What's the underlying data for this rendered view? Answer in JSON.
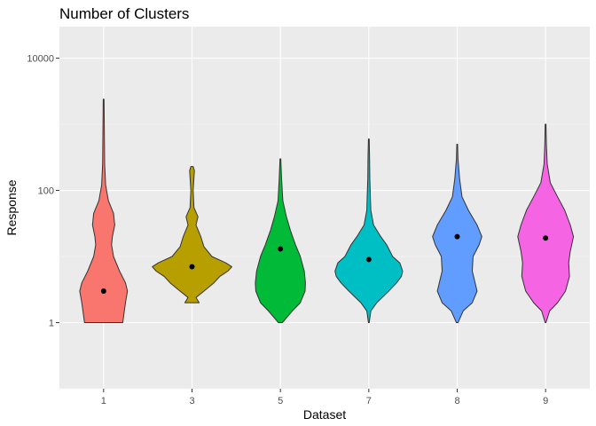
{
  "chart_data": {
    "type": "violin",
    "title": "Number of Clusters",
    "xlabel": "Dataset",
    "ylabel": "Response",
    "y_scale": "log10",
    "ylim": [
      0.1,
      30000
    ],
    "y_ticks": [
      1,
      100,
      10000
    ],
    "y_tick_labels": [
      "1",
      "100",
      "10000"
    ],
    "categories": [
      "1",
      "3",
      "5",
      "7",
      "8",
      "9"
    ],
    "grid": true,
    "legend": "none",
    "series": [
      {
        "category": "1",
        "color": "#F8766D",
        "mean": 3,
        "min": 1,
        "max": 2400,
        "profile": [
          [
            1,
            0.48
          ],
          [
            1.5,
            0.52
          ],
          [
            2,
            0.55
          ],
          [
            3,
            0.6
          ],
          [
            4,
            0.55
          ],
          [
            6,
            0.4
          ],
          [
            10,
            0.25
          ],
          [
            15,
            0.2
          ],
          [
            20,
            0.22
          ],
          [
            30,
            0.28
          ],
          [
            45,
            0.25
          ],
          [
            70,
            0.12
          ],
          [
            120,
            0.05
          ],
          [
            250,
            0.025
          ],
          [
            2400,
            0.01
          ]
        ]
      },
      {
        "category": "3",
        "color": "#B79F00",
        "mean": 7,
        "min": 2,
        "max": 230,
        "profile": [
          [
            2,
            0.18
          ],
          [
            2.4,
            0.1
          ],
          [
            3,
            0.3
          ],
          [
            4,
            0.55
          ],
          [
            5,
            0.7
          ],
          [
            6,
            0.9
          ],
          [
            7,
            1.0
          ],
          [
            8,
            0.85
          ],
          [
            10,
            0.5
          ],
          [
            14,
            0.3
          ],
          [
            20,
            0.22
          ],
          [
            30,
            0.1
          ],
          [
            40,
            0.15
          ],
          [
            55,
            0.05
          ],
          [
            100,
            0.03
          ],
          [
            200,
            0.06
          ],
          [
            230,
            0.03
          ]
        ]
      },
      {
        "category": "5",
        "color": "#00BA38",
        "mean": 13,
        "min": 1,
        "max": 300,
        "profile": [
          [
            1,
            0.05
          ],
          [
            1.5,
            0.3
          ],
          [
            2,
            0.5
          ],
          [
            3,
            0.62
          ],
          [
            4,
            0.63
          ],
          [
            6,
            0.6
          ],
          [
            10,
            0.5
          ],
          [
            15,
            0.38
          ],
          [
            25,
            0.25
          ],
          [
            40,
            0.15
          ],
          [
            70,
            0.06
          ],
          [
            150,
            0.03
          ],
          [
            300,
            0.01
          ]
        ]
      },
      {
        "category": "7",
        "color": "#00BFC4",
        "mean": 9,
        "min": 1,
        "max": 600,
        "profile": [
          [
            1,
            0.01
          ],
          [
            1.5,
            0.05
          ],
          [
            2,
            0.2
          ],
          [
            3,
            0.5
          ],
          [
            4,
            0.7
          ],
          [
            5,
            0.82
          ],
          [
            6,
            0.85
          ],
          [
            8,
            0.78
          ],
          [
            10,
            0.6
          ],
          [
            15,
            0.45
          ],
          [
            20,
            0.3
          ],
          [
            30,
            0.12
          ],
          [
            50,
            0.05
          ],
          [
            80,
            0.04
          ],
          [
            150,
            0.025
          ],
          [
            300,
            0.02
          ],
          [
            600,
            0.01
          ]
        ]
      },
      {
        "category": "8",
        "color": "#619CFF",
        "mean": 20,
        "min": 1,
        "max": 500,
        "profile": [
          [
            1,
            0.02
          ],
          [
            1.5,
            0.15
          ],
          [
            2,
            0.38
          ],
          [
            3,
            0.5
          ],
          [
            4,
            0.45
          ],
          [
            6,
            0.38
          ],
          [
            10,
            0.4
          ],
          [
            15,
            0.55
          ],
          [
            20,
            0.62
          ],
          [
            30,
            0.5
          ],
          [
            50,
            0.28
          ],
          [
            80,
            0.12
          ],
          [
            150,
            0.06
          ],
          [
            300,
            0.02
          ],
          [
            500,
            0.01
          ]
        ]
      },
      {
        "category": "9",
        "color": "#F564E3",
        "mean": 19,
        "min": 1,
        "max": 1000,
        "profile": [
          [
            1,
            0.01
          ],
          [
            1.5,
            0.1
          ],
          [
            2,
            0.3
          ],
          [
            3,
            0.5
          ],
          [
            5,
            0.6
          ],
          [
            8,
            0.58
          ],
          [
            12,
            0.62
          ],
          [
            20,
            0.7
          ],
          [
            30,
            0.62
          ],
          [
            50,
            0.48
          ],
          [
            80,
            0.3
          ],
          [
            130,
            0.12
          ],
          [
            250,
            0.04
          ],
          [
            500,
            0.02
          ],
          [
            1000,
            0.01
          ]
        ]
      }
    ]
  }
}
